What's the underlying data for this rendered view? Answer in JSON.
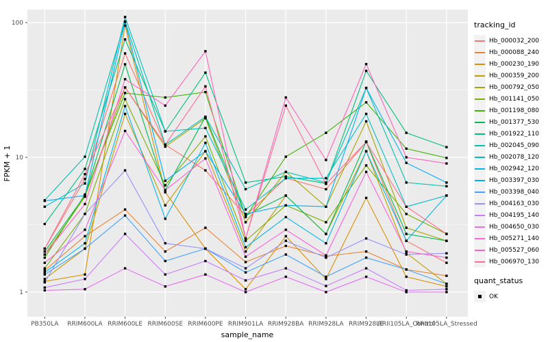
{
  "figure": {
    "y_axis_title": "FPKM + 1",
    "x_axis_title": "sample_name",
    "legend": {
      "tracking_title": "tracking_id",
      "quant_title": "quant_status",
      "quant_ok_label": "OK"
    },
    "colors": {
      "panel_bg": "#EBEBEB",
      "grid": "#FFFFFF",
      "point": "#000000",
      "tick_text": "#4D4D4D",
      "tick_mark": "#333333",
      "legend_key_bg": "#F2F2F2"
    }
  },
  "chart_data": {
    "type": "line",
    "title": "",
    "xlabel": "sample_name",
    "ylabel": "FPKM + 1",
    "y_scale": "log10",
    "ylim": [
      0.65,
      130
    ],
    "y_ticks": [
      1,
      10,
      100
    ],
    "y_minor_ticks": [
      3.1623,
      31.623
    ],
    "grid": true,
    "legend_position": "right",
    "point_marker": "filled-black-square",
    "quant_status": {
      "levels": [
        "OK"
      ],
      "marker": "black-square"
    },
    "categories": [
      "PB350LA",
      "RRIM600LA",
      "RRIM600LE",
      "RRIM600SE",
      "RRIM600PE",
      "RRIM901LA",
      "RRIM928BA",
      "RRIM928LA",
      "RRIM928LE",
      "RRII105LA_Control",
      "RRII105LA_Stressed"
    ],
    "series": [
      {
        "name": "Hb_000032_200",
        "color": "#F8766D",
        "values": [
          2.1,
          6.9,
          59,
          12.4,
          8.0,
          3.7,
          7.0,
          5.8,
          13.0,
          2.4,
          1.65
        ]
      },
      {
        "name": "Hb_000088_240",
        "color": "#EA8331",
        "values": [
          1.45,
          2.6,
          4.1,
          2.0,
          3.0,
          1.67,
          2.2,
          1.85,
          2.0,
          1.47,
          1.32
        ]
      },
      {
        "name": "Hb_000230_190",
        "color": "#D89000",
        "values": [
          1.2,
          1.35,
          95,
          5.5,
          2.1,
          1.05,
          2.6,
          1.25,
          5.0,
          1.3,
          1.1
        ]
      },
      {
        "name": "Hb_000359_200",
        "color": "#C09B00",
        "values": [
          1.25,
          2.1,
          21,
          4.4,
          11.1,
          2.0,
          5.2,
          2.7,
          11.1,
          1.95,
          1.15
        ]
      },
      {
        "name": "Hb_000792_050",
        "color": "#A3A500",
        "values": [
          1.9,
          5.1,
          33,
          12.0,
          19.5,
          3.3,
          7.8,
          4.3,
          18.5,
          3.0,
          2.4
        ]
      },
      {
        "name": "Hb_001141_050",
        "color": "#7CAE00",
        "values": [
          1.5,
          3.8,
          27,
          6.2,
          14.3,
          2.4,
          4.4,
          3.3,
          8.7,
          3.8,
          2.7
        ]
      },
      {
        "name": "Hb_001198_080",
        "color": "#39B600",
        "values": [
          1.8,
          5.3,
          30,
          27.8,
          30.5,
          3.6,
          10.1,
          15.2,
          25.6,
          11.6,
          9.9
        ]
      },
      {
        "name": "Hb_001377_530",
        "color": "#00BB4E",
        "values": [
          2.0,
          5.2,
          49,
          5.7,
          20.0,
          3.7,
          5.2,
          2.7,
          13.1,
          2.7,
          2.4
        ]
      },
      {
        "name": "Hb_001922_110",
        "color": "#00BF7D",
        "values": [
          3.2,
          8.2,
          75,
          15.6,
          42.5,
          6.5,
          7.2,
          6.4,
          43.8,
          15.2,
          11.9
        ]
      },
      {
        "name": "Hb_002045_090",
        "color": "#00C0AF",
        "values": [
          4.8,
          10.1,
          102,
          12.4,
          20.0,
          5.8,
          7.8,
          6.5,
          32.7,
          6.5,
          6.1
        ]
      },
      {
        "name": "Hb_002078_120",
        "color": "#00BFC4",
        "values": [
          4.3,
          6.4,
          110,
          15.6,
          16.5,
          4.1,
          7.0,
          7.0,
          21.0,
          4.3,
          5.2
        ]
      },
      {
        "name": "Hb_002942_120",
        "color": "#00B8E7",
        "values": [
          1.4,
          2.3,
          24,
          3.5,
          12.8,
          2.15,
          3.6,
          2.3,
          11.1,
          2.4,
          5.2
        ]
      },
      {
        "name": "Hb_003397_030",
        "color": "#00B0F6",
        "values": [
          4.75,
          5.2,
          101,
          6.7,
          11.1,
          3.8,
          4.4,
          4.3,
          32.7,
          9.1,
          6.5
        ]
      },
      {
        "name": "Hb_003398_040",
        "color": "#42A1FF",
        "values": [
          1.35,
          2.1,
          3.7,
          1.7,
          2.1,
          1.4,
          1.9,
          1.3,
          1.8,
          1.47,
          1.15
        ]
      },
      {
        "name": "Hb_004163_030",
        "color": "#9590FF",
        "values": [
          1.18,
          3.8,
          8.0,
          2.3,
          2.1,
          1.5,
          2.4,
          1.8,
          2.5,
          1.9,
          1.94
        ]
      },
      {
        "name": "Hb_004195_140",
        "color": "#C77CFF",
        "values": [
          1.08,
          1.25,
          2.7,
          1.35,
          1.7,
          1.22,
          1.5,
          1.11,
          1.5,
          1.03,
          1.05
        ]
      },
      {
        "name": "Hb_004650_030",
        "color": "#E76BF3",
        "values": [
          1.03,
          1.05,
          1.5,
          1.1,
          1.35,
          1.0,
          1.3,
          1.0,
          1.3,
          1.0,
          1.0
        ]
      },
      {
        "name": "Hb_005271_140",
        "color": "#FB61D7",
        "values": [
          1.65,
          2.9,
          15.7,
          5.7,
          9.8,
          1.83,
          2.9,
          1.87,
          7.8,
          2.0,
          1.8
        ]
      },
      {
        "name": "Hb_005527_060",
        "color": "#FF62BC",
        "values": [
          1.9,
          4.5,
          38,
          24.2,
          61.3,
          2.5,
          27.8,
          9.55,
          49.2,
          10.0,
          9.0
        ]
      },
      {
        "name": "Hb_006970_130",
        "color": "#FF6B95",
        "values": [
          2.1,
          7.5,
          33,
          12.4,
          33.6,
          2.5,
          24.2,
          6.35,
          13.0,
          4.3,
          2.7
        ]
      }
    ]
  }
}
